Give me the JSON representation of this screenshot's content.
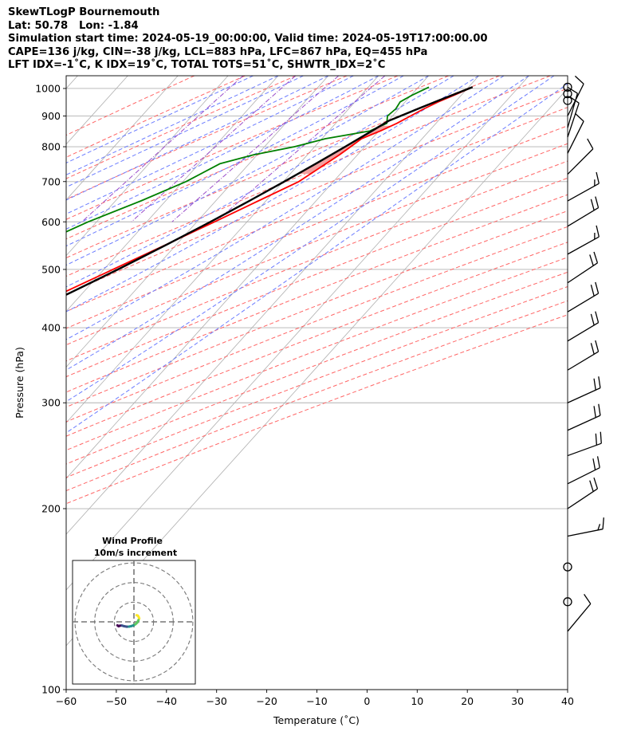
{
  "title": {
    "lines": [
      "SkewTLogP Bournemouth",
      "Lat: 50.78   Lon: -1.84",
      "Simulation start time: 2024-05-19_00:00:00, Valid time: 2024-05-19T17:00:00.00",
      "CAPE=136 j/kg, CIN=-38 j/kg, LCL=883 hPa, LFC=867 hPa, EQ=455 hPa",
      "LFT IDX=-1˚C, K IDX=19˚C, TOTAL TOTS=51˚C, SHWTR_IDX=2˚C"
    ]
  },
  "chart_data": [
    {
      "type": "line",
      "subtype": "skew-t-log-p",
      "xlabel": "Temperature (˚C)",
      "ylabel": "Pressure (hPa)",
      "xlim": [
        -60,
        40
      ],
      "ylim": [
        1050,
        100
      ],
      "y_scale": "log",
      "x_ticks": [
        -60,
        -50,
        -40,
        -30,
        -20,
        -10,
        0,
        10,
        20,
        30,
        40
      ],
      "x_tick_labels": [
        "−60",
        "−50",
        "−40",
        "−30",
        "−20",
        "−10",
        "0",
        "10",
        "20",
        "30",
        "40"
      ],
      "y_ticks": [
        1000,
        900,
        800,
        700,
        600,
        500,
        400,
        300,
        200,
        100
      ],
      "y_tick_labels": [
        "1000",
        "900",
        "800",
        "700",
        "600",
        "500",
        "400",
        "300",
        "200",
        "100"
      ],
      "grid": true,
      "colors": {
        "temperature": "#ff0000",
        "dewpoint": "#008000",
        "parcel": "#000000",
        "cape_fill": "#a6c8e0",
        "cin_fill": "#f2a0a0",
        "dry_adiabat": "#ff6666",
        "moist_adiabat": "#6b7cff",
        "mixing_ratio": "#9b4dca",
        "isotherm": "#b0b0b0"
      },
      "series": [
        {
          "key": "temperature",
          "pressure": [
            1005,
            975,
            950,
            925,
            900,
            875,
            850,
            825,
            800,
            775,
            750,
            700,
            650,
            600,
            550,
            500,
            450,
            400,
            350,
            300,
            280,
            260,
            240,
            225,
            210,
            200,
            190,
            180,
            170,
            160,
            150,
            140,
            130,
            120,
            110,
            100
          ],
          "values": [
            20.8,
            18.6,
            16.6,
            15.0,
            13.6,
            12.2,
            10.3,
            7.9,
            7.2,
            6.4,
            5.3,
            3.1,
            -1.5,
            -6.5,
            -12.0,
            -18.2,
            -25.0,
            -32.4,
            -40.8,
            -50.0,
            -53.0,
            -56.4,
            -60.2,
            -63.2,
            -65.8,
            -67.2,
            -68.2,
            -69.6,
            -71.6,
            -74.4,
            -77.6,
            -80.8,
            -84.3,
            -88.2,
            -92.4,
            -97.0
          ]
        },
        {
          "key": "dewpoint",
          "pressure": [
            1005,
            975,
            950,
            925,
            900,
            875,
            850,
            825,
            800,
            775,
            750,
            700,
            650,
            600,
            550,
            500,
            450,
            400,
            350,
            300,
            280,
            260,
            240,
            225,
            210,
            200,
            190,
            180,
            170,
            160,
            150,
            140,
            130,
            120,
            110,
            100
          ],
          "values": [
            12.1,
            10.2,
            9.0,
            9.4,
            9.0,
            10.2,
            8.2,
            0.7,
            -4.0,
            -10.8,
            -15.8,
            -19.4,
            -24.9,
            -31.7,
            -37.6,
            -43.6,
            -56.4,
            -59.0,
            -66.4,
            -76.3,
            -79.6,
            -84.0,
            -86.4,
            -89.9,
            -93.4,
            -98.5,
            -103.5,
            -107.3,
            -105.8,
            -103.0,
            -100.2,
            -97.2,
            -94.2,
            -91.2,
            -88.0,
            -84.4
          ]
        },
        {
          "key": "parcel",
          "pressure": [
            1005,
            975,
            950,
            925,
            900,
            883,
            850,
            800,
            750,
            700,
            650,
            600,
            550,
            500,
            455,
            400,
            350,
            300,
            250,
            200,
            150,
            100
          ],
          "values": [
            20.8,
            18.2,
            16.0,
            13.8,
            11.6,
            10.1,
            8.6,
            6.1,
            3.3,
            0.2,
            -3.3,
            -7.3,
            -11.9,
            -17.2,
            -22.8,
            -31.0,
            -40.5,
            -52.0,
            -65.0,
            -80.6,
            -99.5,
            -124.2
          ]
        }
      ],
      "wind_barbs": [
        {
          "p": 1005,
          "barb": "calm"
        },
        {
          "p": 980,
          "barb": "calm"
        },
        {
          "p": 955,
          "barb": "calm"
        },
        {
          "p": 900,
          "u": 3,
          "v": 6
        },
        {
          "p": 860,
          "u": 2,
          "v": 7
        },
        {
          "p": 830,
          "u": 2,
          "v": 6
        },
        {
          "p": 780,
          "u": 4,
          "v": 8
        },
        {
          "p": 720,
          "u": 6,
          "v": 6
        },
        {
          "p": 650,
          "u": 9,
          "v": 5
        },
        {
          "p": 590,
          "u": 10,
          "v": 6
        },
        {
          "p": 530,
          "u": 9,
          "v": 5
        },
        {
          "p": 475,
          "u": 9,
          "v": 6
        },
        {
          "p": 425,
          "u": 10,
          "v": 6
        },
        {
          "p": 380,
          "u": 10,
          "v": 6
        },
        {
          "p": 340,
          "u": 10,
          "v": 6
        },
        {
          "p": 300,
          "u": 11,
          "v": 5
        },
        {
          "p": 270,
          "u": 11,
          "v": 5
        },
        {
          "p": 245,
          "u": 11,
          "v": 4
        },
        {
          "p": 220,
          "u": 10,
          "v": 5
        },
        {
          "p": 200,
          "u": 9,
          "v": 6
        },
        {
          "p": 180,
          "u": 10,
          "v": 2
        },
        {
          "p": 160,
          "barb": "calm"
        },
        {
          "p": 140,
          "barb": "calm"
        },
        {
          "p": 125,
          "u": 5,
          "v": 6
        }
      ]
    },
    {
      "type": "line",
      "subtype": "hodograph",
      "title": "Wind Profile",
      "subtitle": "10m/s increment",
      "rings_ms": [
        10,
        20,
        30
      ],
      "colormap": [
        "#440154",
        "#3b528b",
        "#21918c",
        "#5ec962",
        "#fde725"
      ],
      "u": [
        1.5,
        2.1,
        2.6,
        3.0,
        2.6,
        1.9,
        0.8,
        -0.3,
        -1.4,
        -2.7,
        -4.0,
        -5.6,
        -7.0,
        -8.0,
        -8.7,
        -9.0,
        -9.4
      ],
      "v": [
        3.8,
        3.6,
        3.0,
        2.0,
        1.0,
        -0.4,
        -1.4,
        -2.0,
        -2.4,
        -2.7,
        -2.8,
        -2.5,
        -2.1,
        -2.2,
        -2.5,
        -2.3,
        -2.0
      ]
    }
  ]
}
